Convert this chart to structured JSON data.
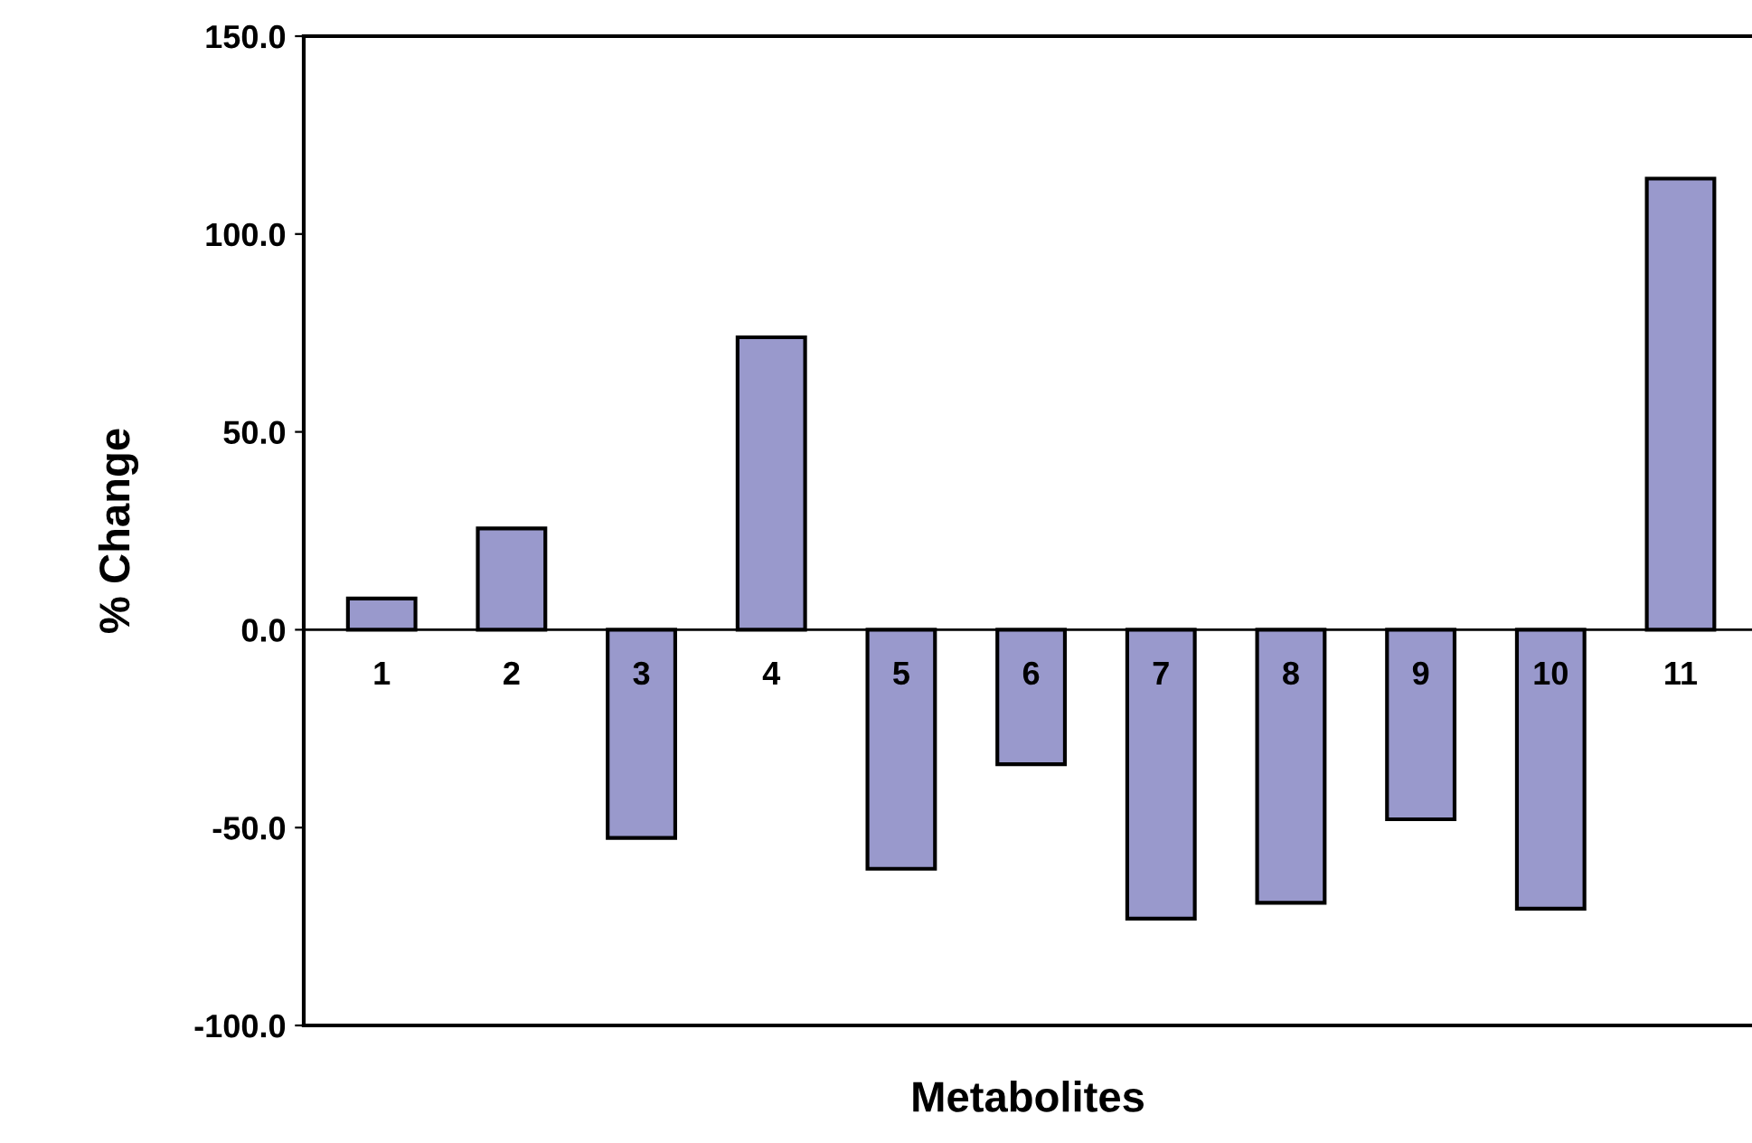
{
  "chart_data": {
    "type": "bar",
    "xlabel": "Metabolites",
    "ylabel": "% Change",
    "categories": [
      "1",
      "2",
      "3",
      "4",
      "5",
      "6",
      "7",
      "8",
      "9",
      "10",
      "11"
    ],
    "values": [
      7.9,
      25.6,
      -52.6,
      73.9,
      -60.4,
      -34,
      -73,
      -69,
      -47.9,
      -70.5,
      114
    ],
    "color": "#9999cc",
    "ylim": [
      -100,
      150
    ],
    "yticks": [
      {
        "value": -100,
        "label": "-100.0"
      },
      {
        "value": -50,
        "label": "-50.0"
      },
      {
        "value": 0,
        "label": "0.0"
      },
      {
        "value": 50,
        "label": "50.0"
      },
      {
        "value": 100,
        "label": "100.0"
      },
      {
        "value": 150,
        "label": "150.0"
      }
    ],
    "grid": false
  }
}
